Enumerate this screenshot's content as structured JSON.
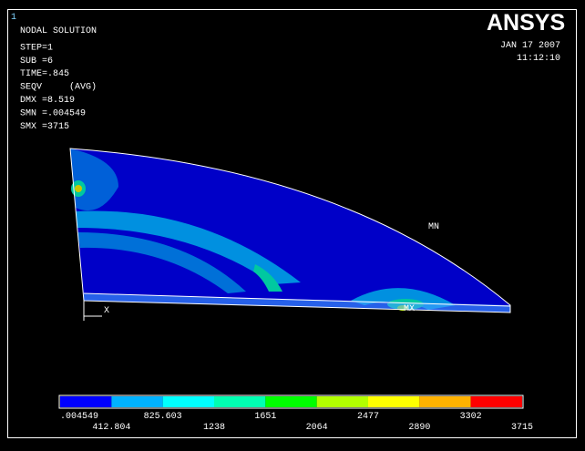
{
  "window_number": "1",
  "info": [
    "NODAL SOLUTION",
    "STEP=1",
    "SUB =6",
    "TIME=.845",
    "SEQV     (AVG)",
    "DMX =8.519",
    "SMN =.004549",
    "SMX =3715"
  ],
  "logo": "ANSYS",
  "date": "JAN 17 2007",
  "time": "11:12:10",
  "model_labels": {
    "min": "MN",
    "max": "MX",
    "axis_x": "X"
  },
  "legend": {
    "colors": [
      "#0000ff",
      "#00b2ff",
      "#00ffff",
      "#00ffb2",
      "#00ff00",
      "#b2ff00",
      "#ffff00",
      "#ffb200",
      "#ff0000"
    ],
    "labels": [
      ".004549",
      "412.804",
      "825.603",
      "1238",
      "1651",
      "2064",
      "2477",
      "2890",
      "3302",
      "3715"
    ]
  }
}
